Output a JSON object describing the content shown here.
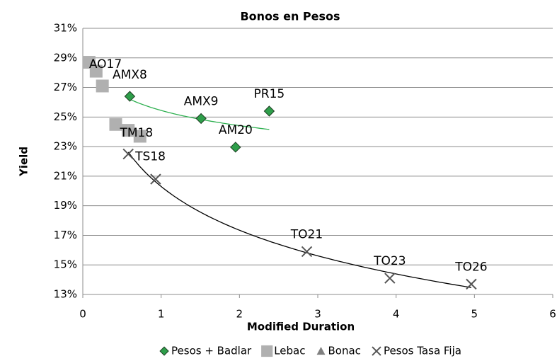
{
  "chart_data": {
    "type": "scatter",
    "title": "Bonos en Pesos",
    "x_label": "Modified Duration",
    "y_label": "Yield",
    "xlim": [
      0,
      6
    ],
    "xticks": [
      0,
      1,
      2,
      3,
      4,
      5,
      6
    ],
    "ylim": [
      13,
      31
    ],
    "yticks": [
      {
        "value": 13,
        "label": "13%"
      },
      {
        "value": 15,
        "label": "15%"
      },
      {
        "value": 17,
        "label": "17%"
      },
      {
        "value": 19,
        "label": "19%"
      },
      {
        "value": 21,
        "label": "21%"
      },
      {
        "value": 23,
        "label": "23%"
      },
      {
        "value": 25,
        "label": "25%"
      },
      {
        "value": 27,
        "label": "27%"
      },
      {
        "value": 29,
        "label": "29%"
      },
      {
        "value": 31,
        "label": "31%"
      }
    ],
    "grid": true,
    "legend": "bottom",
    "series": [
      {
        "name": "Pesos + Badlar",
        "color": "#2e9e4a",
        "marker": "diamond",
        "trendline": "logarithmic",
        "trendline_color": "#2eb050",
        "x": [
          0.6,
          1.51,
          1.95,
          2.38
        ],
        "values": [
          26.4,
          24.9,
          22.96,
          25.4
        ],
        "point_labels": [
          "AMX8",
          "AMX9",
          "AM20",
          "PR15"
        ]
      },
      {
        "name": "Lebac",
        "color": "#b0b0b0",
        "marker": "square",
        "x": [
          0.08,
          0.17,
          0.25,
          0.42,
          0.58,
          0.73
        ],
        "values": [
          28.7,
          28.1,
          27.1,
          24.5,
          24.1,
          23.7
        ],
        "point_labels": [
          "AO17",
          null,
          null,
          "TM18",
          null,
          null
        ]
      },
      {
        "name": "Bonac",
        "color": "#808080",
        "marker": "triangle",
        "x": [],
        "values": [],
        "point_labels": []
      },
      {
        "name": "Pesos Tasa Fija",
        "color": "#555555",
        "marker": "x",
        "trendline": "logarithmic",
        "trendline_color": "#000000",
        "x": [
          0.58,
          0.93,
          2.86,
          3.92,
          4.96
        ],
        "values": [
          22.5,
          20.8,
          15.9,
          14.1,
          13.7
        ],
        "point_labels": [
          "TS18",
          null,
          "TO21",
          "TO23",
          "TO26"
        ]
      }
    ]
  }
}
